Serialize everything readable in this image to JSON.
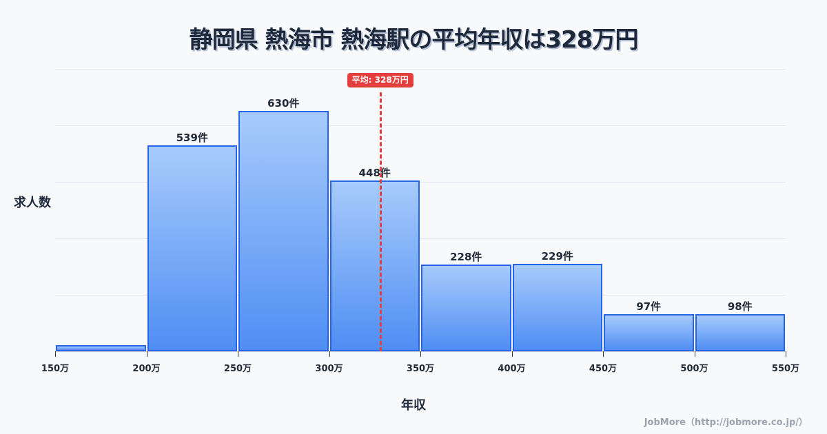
{
  "title": "静岡県 熱海市 熱海駅の平均年収は328万円",
  "axes": {
    "ylabel": "求人数",
    "xlabel": "年収"
  },
  "average": {
    "label": "平均: 328万円",
    "value": 328,
    "color": "#e53e3e"
  },
  "credit": "JobMore（http://jobmore.co.jp/）",
  "colors": {
    "bar_border": "#2563eb",
    "bar_top": "#a7cbfb",
    "bar_bottom": "#4f8ef3",
    "background": "#f8f9fb"
  },
  "chart_data": {
    "type": "bar",
    "title": "静岡県 熱海市 熱海駅の平均年収は328万円",
    "xlabel": "年収",
    "ylabel": "求人数",
    "x_ticks": [
      "150万",
      "200万",
      "250万",
      "300万",
      "350万",
      "400万",
      "450万",
      "500万",
      "550万"
    ],
    "categories": [
      "150-200万",
      "200-250万",
      "250-300万",
      "300-350万",
      "350-400万",
      "400-450万",
      "450-500万",
      "500-550万"
    ],
    "values": [
      16,
      539,
      630,
      448,
      228,
      229,
      97,
      98
    ],
    "labels": [
      "",
      "539件",
      "630件",
      "448件",
      "228件",
      "229件",
      "97件",
      "98件"
    ],
    "annotations": [
      {
        "type": "vline",
        "x": 328,
        "label": "平均: 328万円",
        "style": "dashed",
        "color": "#e53e3e"
      }
    ],
    "ylim": [
      0,
      740
    ],
    "xlim": [
      150,
      550
    ],
    "grid": "horizontal",
    "legend": null
  }
}
